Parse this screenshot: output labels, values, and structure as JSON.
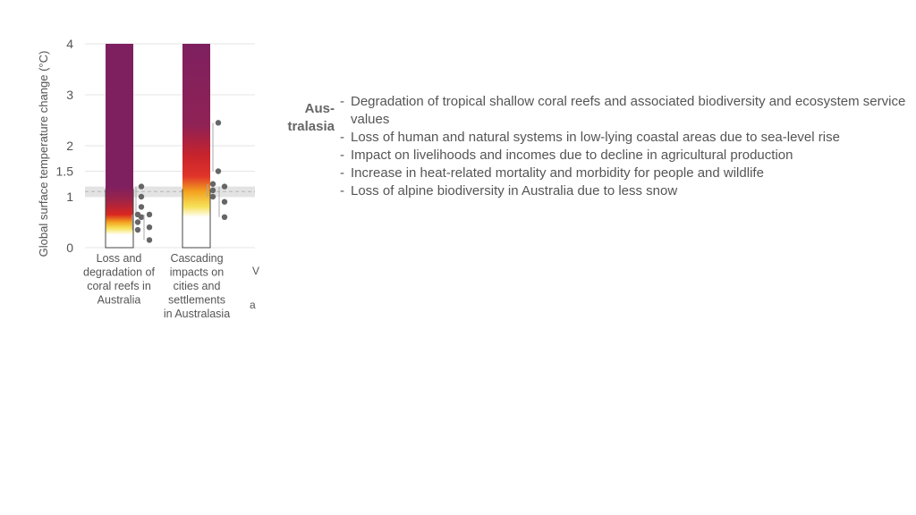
{
  "chart_data": {
    "type": "bar",
    "ylabel": "Global surface temperature change (°C)",
    "ylim": [
      0,
      4
    ],
    "yticks": [
      0,
      1,
      1.5,
      2,
      3,
      4
    ],
    "reference_band": [
      1.0,
      1.2
    ],
    "reference_line": 1.1,
    "categories": [
      {
        "label_lines": [
          "Loss and",
          "degradation of",
          "coral reefs in",
          "Australia"
        ],
        "gradient_stops": [
          {
            "t": 0.0,
            "color": "#ffffff"
          },
          {
            "t": 0.25,
            "color": "#ffffff"
          },
          {
            "t": 0.38,
            "color": "#f7e25a"
          },
          {
            "t": 0.5,
            "color": "#f3a21f"
          },
          {
            "t": 0.65,
            "color": "#d9261f"
          },
          {
            "t": 0.95,
            "color": "#9b2349"
          },
          {
            "t": 1.2,
            "color": "#7e2060"
          },
          {
            "t": 4.0,
            "color": "#7e2060"
          }
        ],
        "confidence_marks": [
          {
            "y0": 1.2,
            "y1": 0.6,
            "dots": 4
          },
          {
            "y0": 0.65,
            "y1": 0.15,
            "dots": 3
          },
          {
            "y0": 0.65,
            "y1": 0.35,
            "dots": 3
          }
        ]
      },
      {
        "label_lines": [
          "Cascading",
          "impacts on",
          "cities and",
          "settlements",
          "in Australasia"
        ],
        "gradient_stops": [
          {
            "t": 0.0,
            "color": "#ffffff"
          },
          {
            "t": 0.6,
            "color": "#ffffff"
          },
          {
            "t": 0.8,
            "color": "#f7e25a"
          },
          {
            "t": 1.1,
            "color": "#f3a21f"
          },
          {
            "t": 1.4,
            "color": "#e0342a"
          },
          {
            "t": 1.8,
            "color": "#c8232c"
          },
          {
            "t": 2.4,
            "color": "#8f2255"
          },
          {
            "t": 4.0,
            "color": "#7e2060"
          }
        ],
        "confidence_marks": [
          {
            "y0": 2.45,
            "y1": 1.5,
            "dots": 2
          },
          {
            "y0": 1.2,
            "y1": 0.6,
            "dots": 3
          },
          {
            "y0": 1.25,
            "y1": 1.0,
            "dots": 3
          }
        ]
      }
    ],
    "clipped_label_fragments": [
      "V",
      "a"
    ]
  },
  "region": {
    "label_line1": "Aus-",
    "label_line2": "tralasia"
  },
  "risks": [
    {
      "dash": "-",
      "text": "Degradation of tropical shallow coral reefs and associated biodiversity and ecosystem service values"
    },
    {
      "dash": "-",
      "text": "Loss of human and natural systems in low-lying coastal areas due to sea-level rise"
    },
    {
      "dash": "-",
      "text": "Impact on livelihoods and incomes due to decline in agricultural production"
    },
    {
      "dash": "-",
      "text": "Increase in heat-related mortality and morbidity for people and wildlife"
    },
    {
      "dash": "-",
      "text": "Loss of alpine biodiversity in Australia due to less snow"
    }
  ],
  "colors": {
    "very_high": "#7e2060",
    "high": "#d9261f",
    "moderate": "#f3a21f",
    "undetectable": "#ffffff",
    "text": "#555555",
    "dots": "#666666"
  }
}
